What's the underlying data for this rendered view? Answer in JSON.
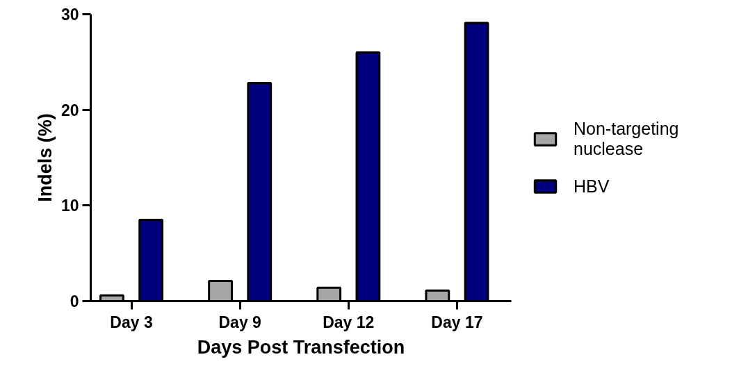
{
  "chart_data": {
    "type": "bar",
    "xlabel": "Days Post Transfection",
    "ylabel": "Indels (%)",
    "categories": [
      "Day 3",
      "Day 9",
      "Day 12",
      "Day 17"
    ],
    "series": [
      {
        "name": "Non-targeting nuclease",
        "color": "#a6a6a6",
        "values": [
          0.6,
          2.1,
          1.4,
          1.1
        ]
      },
      {
        "name": "HBV",
        "color": "#00007f",
        "values": [
          8.5,
          22.8,
          26.0,
          29.1
        ]
      }
    ],
    "ylim": [
      0,
      30
    ],
    "yticks": [
      0,
      10,
      20,
      30
    ],
    "grid": false,
    "legend": "right"
  }
}
